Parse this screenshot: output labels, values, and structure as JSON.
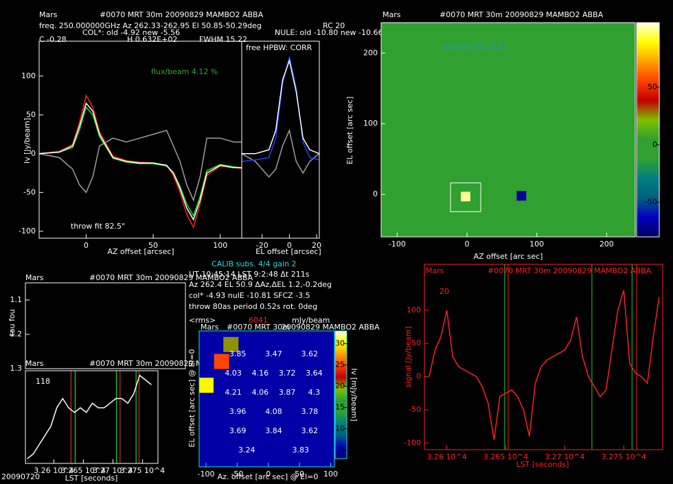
{
  "chart_data": [
    {
      "type": "line",
      "header": [
        "Mars",
        "#0070 MRT 30m 20090829 MAMBO2 ABBA",
        "freq. 250.000000GHz Az 262.33-262.95 El 50.85-50.29deg",
        "RC 20",
        "COL*: old -4.92 new -5.56",
        "NULE: old -10.80 new -10.66",
        "C -0.28",
        "H 0.632E+02",
        "FWHM 15.22"
      ],
      "annotations": [
        "flux/beam 4.12 %",
        "throw fit 82.5\""
      ],
      "xlabel": "AZ offset [arcsec]",
      "ylabel": "Iv [Jy/beam]",
      "axis_color": "#ffffff",
      "text_color": "#ffffff",
      "xlim": [
        -35,
        116
      ],
      "ylim": [
        -109,
        145
      ],
      "xticks": [
        0,
        50,
        100
      ],
      "yticks": [
        -100,
        -50,
        0,
        50,
        100
      ],
      "x": [
        -35,
        -20,
        -10,
        -5,
        0,
        5,
        10,
        20,
        30,
        40,
        50,
        60,
        65,
        70,
        75,
        80,
        85,
        90,
        100,
        110,
        116
      ],
      "series": [
        {
          "color": "#a0a0a0",
          "values": [
            0,
            -5,
            -20,
            -40,
            -50,
            -30,
            10,
            20,
            15,
            20,
            25,
            30,
            10,
            -10,
            -40,
            -60,
            -30,
            20,
            20,
            15,
            15
          ]
        },
        {
          "color": "#ff2020",
          "values": [
            0,
            3,
            12,
            40,
            75,
            60,
            28,
            -3,
            -9,
            -11,
            -12,
            -15,
            -28,
            -50,
            -78,
            -95,
            -65,
            -28,
            -16,
            -18,
            -19
          ]
        },
        {
          "color": "#20e020",
          "values": [
            0,
            2,
            8,
            30,
            60,
            50,
            22,
            -6,
            -11,
            -13,
            -13,
            -16,
            -24,
            -42,
            -65,
            -80,
            -55,
            -22,
            -14,
            -17,
            -18
          ]
        },
        {
          "color": "#ffffff",
          "values": [
            0,
            2,
            10,
            35,
            65,
            55,
            25,
            -5,
            -10,
            -12,
            -12,
            -15,
            -25,
            -45,
            -70,
            -85,
            -60,
            -25,
            -15,
            -18,
            -18
          ]
        }
      ]
    },
    {
      "type": "line",
      "annotations": [
        "free HPBW: CORR"
      ],
      "xlabel": "EL offset [arcsec]",
      "axis_color": "#ffffff",
      "text_color": "#ffffff",
      "xlim": [
        -35,
        22
      ],
      "ylim": [
        -109,
        145
      ],
      "xticks": [
        -20,
        0,
        20
      ],
      "x": [
        -35,
        -25,
        -15,
        -10,
        -5,
        0,
        5,
        10,
        15,
        22
      ],
      "series": [
        {
          "color": "#a0a0a0",
          "values": [
            0,
            -10,
            -30,
            -20,
            10,
            30,
            -10,
            -25,
            -10,
            0
          ]
        },
        {
          "color": "#2040ff",
          "values": [
            -10,
            -8,
            -5,
            20,
            90,
            125,
            85,
            15,
            -5,
            -8
          ]
        },
        {
          "color": "#ffffff",
          "values": [
            0,
            0,
            5,
            30,
            95,
            120,
            80,
            20,
            5,
            0
          ]
        }
      ]
    },
    {
      "type": "heatmap",
      "header": [
        "Mars",
        "#0070 MRT 30m 20090829 MAMBO2 ABBA"
      ],
      "annotations": [
        "position (-2,-3.1)"
      ],
      "xlabel": "AZ offset [arc sec]",
      "ylabel": "EL offset [arc sec]",
      "axis_color": "#ffffff",
      "text_color": "#ffffff",
      "xlim": [
        -123,
        241
      ],
      "ylim": [
        -60,
        243
      ],
      "xticks": [
        -100,
        0,
        100,
        200
      ],
      "yticks": [
        0,
        100,
        200
      ],
      "background": 0,
      "sources": [
        {
          "x": -2,
          "y": -3,
          "value": 100
        },
        {
          "x": 78,
          "y": -2,
          "value": -70
        }
      ],
      "zlim": [
        -80,
        106
      ],
      "zticks": [
        -50,
        0,
        50
      ],
      "colors": [
        "#000060",
        "#0000c0",
        "#006080",
        "#008080",
        "#30a030",
        "#30a030",
        "#80c000",
        "#c00000",
        "#ff4000",
        "#ffa000",
        "#ffff00",
        "#ffffe0"
      ]
    },
    {
      "type": "line",
      "header": [
        "Mars",
        "#0070 MRT 30m 20090829 MAMBO2 ABBA"
      ],
      "ylabel": "tau fou",
      "axis_color": "#ffffff",
      "text_color": "#ffffff",
      "xlim": [
        32552,
        32776
      ],
      "ylim": [
        1.05,
        1.3
      ],
      "y_reversed": true,
      "yticks": [
        1.1,
        1.2,
        1.3
      ]
    },
    {
      "type": "line",
      "header": [
        "Mars",
        "#0070 MRT 30m 20090829 MAMBO2 ABBA",
        "20090720"
      ],
      "annotations": [
        "118"
      ],
      "xlabel": "LST [seconds]",
      "axis_color": "#ffffff",
      "text_color": "#ffffff",
      "xlim": [
        32552,
        32776
      ],
      "ylim": [
        0,
        10
      ],
      "xticks": [
        {
          "value": 32600,
          "label": "3.26 10^4"
        },
        {
          "value": 32650,
          "label": "3.265 10^4"
        },
        {
          "value": 32700,
          "label": "3.27 10^4"
        },
        {
          "value": 32750,
          "label": "3.275 10^4"
        }
      ],
      "x": [
        32555,
        32565,
        32575,
        32585,
        32595,
        32605,
        32615,
        32625,
        32635,
        32645,
        32655,
        32665,
        32675,
        32685,
        32695,
        32705,
        32715,
        32725,
        32735,
        32745,
        32755,
        32765
      ],
      "series": [
        {
          "color": "#ffffff",
          "values": [
            0.5,
            1,
            2,
            3,
            4,
            6,
            7,
            6,
            5.5,
            6,
            5.5,
            6.5,
            6,
            6,
            6.5,
            7,
            7,
            6.5,
            7.5,
            9.5,
            9,
            8.5
          ]
        }
      ],
      "vlines": [
        {
          "color": "#ff3030",
          "x": [
            32629,
            32712,
            32744
          ]
        },
        {
          "color": "#30ff30",
          "x": [
            32636,
            32706,
            32739
          ]
        }
      ]
    },
    {
      "type": "contour",
      "header": [
        "CALIB subs. 4/4 gain 2",
        "UT 10:45:14 LST 9:2:48 Δt 211s",
        "Az 262.4 EL 50.9 ΔAz,ΔEL 1.2,-0.2deg",
        "col* -4.93 nulE -10.81 SFCZ -3.5",
        "throw 80as period 0.52s rot. 0deg",
        "<rms>",
        "6041",
        "mJy/beam",
        "Mars",
        "#0070 MRT 30m",
        "20090829 MAMBO2 ABBA"
      ],
      "xlabel": "Az. offset [arc sec] @ El=0",
      "ylabel": "EL offset [arc sec] @ El=0",
      "colorbar_label": "Iv [mJy/beam]",
      "axis_color": "#20e0e0",
      "text_color": "#ffffff",
      "xlim": [
        -111,
        106
      ],
      "ylim": [
        -100,
        100
      ],
      "xticks": [
        -100,
        -50,
        0,
        50,
        100
      ],
      "background": 5,
      "sources": [
        {
          "x": -100,
          "y": 20,
          "value": 30
        },
        {
          "x": -75,
          "y": 55,
          "value": 25
        },
        {
          "x": -60,
          "y": 80,
          "value": 20
        }
      ],
      "zlim": [
        3,
        33
      ],
      "zticks": [
        5,
        10,
        15,
        20,
        25,
        30
      ],
      "colors": [
        "#000060",
        "#0000c0",
        "#006080",
        "#008080",
        "#30a030",
        "#30a030",
        "#80c000",
        "#c00000",
        "#ff4000",
        "#ffa000",
        "#ffff00",
        "#ffffe0"
      ],
      "contour_labels": [
        [
          "3.85",
          "3.47",
          "3.62"
        ],
        [
          "4.03",
          "4.16",
          "3.72",
          "3.64"
        ],
        [
          "4.21",
          "4.06",
          "3.87",
          "4.3"
        ],
        [
          "3.96",
          "4.08",
          "3.78"
        ],
        [
          "3.69",
          "3.84",
          "3.62"
        ],
        [
          "3.24",
          "3.83"
        ]
      ]
    },
    {
      "type": "line",
      "header": [
        "Mars",
        "#0070 MRT 30m 20090829 MAMBO2 ABBA"
      ],
      "annotations": [
        "20"
      ],
      "xlabel": "LST [seconds]",
      "ylabel": "signal [Jy/beam]",
      "axis_color": "#ff2020",
      "text_color": "#ff2020",
      "xlim": [
        32581,
        32783
      ],
      "ylim": [
        -110,
        169
      ],
      "xticks": [
        {
          "value": 32600,
          "label": "3.26 10^4"
        },
        {
          "value": 32650,
          "label": "3.265 10^4"
        },
        {
          "value": 32700,
          "label": "3.27 10^4"
        },
        {
          "value": 32750,
          "label": "3.275 10^4"
        }
      ],
      "yticks": [
        -100,
        -50,
        0,
        50,
        100
      ],
      "x": [
        32585,
        32590,
        32595,
        32600,
        32605,
        32610,
        32615,
        32620,
        32625,
        32630,
        32635,
        32640,
        32645,
        32650,
        32655,
        32660,
        32665,
        32670,
        32675,
        32680,
        32685,
        32690,
        32695,
        32700,
        32705,
        32710,
        32715,
        32720,
        32725,
        32730,
        32735,
        32740,
        32745,
        32750,
        32755,
        32760,
        32765,
        32770,
        32775,
        32780
      ],
      "series": [
        {
          "color": "#ff2020",
          "values": [
            0,
            40,
            60,
            100,
            30,
            15,
            10,
            5,
            0,
            -15,
            -40,
            -95,
            -30,
            -25,
            -20,
            -30,
            -50,
            -90,
            -10,
            15,
            25,
            30,
            35,
            40,
            55,
            90,
            30,
            0,
            -15,
            -30,
            -20,
            40,
            100,
            130,
            20,
            5,
            0,
            -10,
            60,
            120
          ]
        }
      ],
      "vlines": [
        {
          "color": "#20d020",
          "x": [
            32649,
            32723,
            32757
          ]
        },
        {
          "color": "#ff2020",
          "x": [
            32652,
            32761
          ]
        }
      ]
    }
  ]
}
